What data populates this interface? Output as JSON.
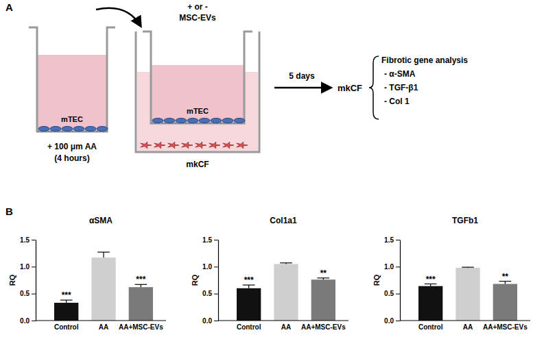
{
  "diagram": {
    "label": "A",
    "treatment_top": "+ or -",
    "treatment_bottom": "MSC-EVs",
    "cell_inner_left": "mTEC",
    "cell_inner_right": "mTEC",
    "pretreatment": "+ 100 μm AA",
    "pretreatment_time": "(4 hours)",
    "cell_outer": "mkCF",
    "duration": "5 days",
    "output": "mkCF",
    "analysis_title": "Fibrotic gene analysis",
    "analysis_items": [
      "- α-SMA",
      "- TGF-β1",
      "- Col 1"
    ]
  },
  "panel_b_label": "B",
  "chart_data": [
    {
      "type": "bar",
      "title": "αSMA",
      "y_label": "RQ",
      "categories": [
        "Control",
        "AA",
        "AA+MSC-EVs"
      ],
      "values": [
        0.33,
        1.17,
        0.62
      ],
      "errors": [
        0.05,
        0.1,
        0.05
      ],
      "significance": [
        "***",
        null,
        "***"
      ],
      "colors": [
        "#111111",
        "#cfcfcf",
        "#7a7a7a"
      ],
      "ylim": [
        0,
        1.5
      ],
      "yticks": [
        {
          "value": 0,
          "label": "0.0"
        },
        {
          "value": 0.5,
          "label": "0.5"
        },
        {
          "value": 1,
          "label": "1.0"
        },
        {
          "value": 1.5,
          "label": "1.5"
        }
      ]
    },
    {
      "type": "bar",
      "title": "Col1a1",
      "y_label": "RQ",
      "categories": [
        "Control",
        "AA",
        "AA+MSC-EVs"
      ],
      "values": [
        0.6,
        1.05,
        0.76
      ],
      "errors": [
        0.06,
        0.02,
        0.03
      ],
      "significance": [
        "***",
        null,
        "**"
      ],
      "colors": [
        "#111111",
        "#cfcfcf",
        "#7a7a7a"
      ],
      "ylim": [
        0,
        1.5
      ],
      "yticks": [
        {
          "value": 0,
          "label": "0.0"
        },
        {
          "value": 0.5,
          "label": "0.5"
        },
        {
          "value": 1,
          "label": "1.0"
        },
        {
          "value": 1.5,
          "label": "1.5"
        }
      ]
    },
    {
      "type": "bar",
      "title": "TGFb1",
      "y_label": "RQ",
      "categories": [
        "Control",
        "AA",
        "AA+MSC-EVs"
      ],
      "values": [
        0.64,
        0.98,
        0.68
      ],
      "errors": [
        0.04,
        0.01,
        0.05
      ],
      "significance": [
        "***",
        null,
        "**"
      ],
      "colors": [
        "#111111",
        "#cfcfcf",
        "#7a7a7a"
      ],
      "ylim": [
        0,
        1.5
      ],
      "yticks": [
        {
          "value": 0,
          "label": "0.0"
        },
        {
          "value": 0.5,
          "label": "0.5"
        },
        {
          "value": 1,
          "label": "1.0"
        },
        {
          "value": 1.5,
          "label": "1.5"
        }
      ]
    }
  ]
}
